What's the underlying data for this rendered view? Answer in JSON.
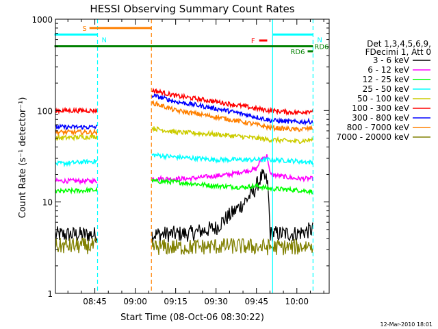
{
  "chart_data": {
    "type": "line",
    "title": "HESSI Observing Summary Count Rates",
    "xlabel": "Start Time (08-Oct-06 08:30:22)",
    "ylabel": "Count Rate (s⁻¹ detector⁻¹)",
    "yscale": "log",
    "ylim": [
      1,
      1000
    ],
    "xlim": [
      "08:30:22",
      "10:12:00"
    ],
    "x_ticks": [
      "08:45",
      "09:00",
      "09:15",
      "09:30",
      "09:45",
      "10:00"
    ],
    "y_ticks": [
      "1",
      "10",
      "100",
      "1000"
    ],
    "footer_date": "12-Mar-2010 18:01",
    "legend_header": [
      "Det 1,3,4,5,6,9,",
      "FDecimi 1, Att 0"
    ],
    "legend_position": "right",
    "series": [
      {
        "name": "3 - 6 keV",
        "color": "#000000",
        "x": [
          "08:30",
          "08:46",
          "09:05",
          "09:20",
          "09:30",
          "09:36",
          "09:40",
          "09:44",
          "09:47",
          "09:49",
          "09:50",
          "10:00",
          "10:06"
        ],
        "y": [
          4.4,
          4.4,
          4.4,
          4.5,
          5.2,
          7.5,
          9.5,
          13,
          19,
          17,
          4.5,
          4.5,
          5
        ]
      },
      {
        "name": "6 - 12 keV",
        "color": "#ff00ff",
        "x": [
          "08:30",
          "08:46",
          "09:05",
          "09:20",
          "09:35",
          "09:45",
          "09:47",
          "09:49",
          "09:50",
          "10:00",
          "10:06"
        ],
        "y": [
          17,
          17,
          18,
          18,
          20,
          23,
          30,
          32,
          20,
          18,
          18
        ]
      },
      {
        "name": "12 - 25 keV",
        "color": "#00ff00",
        "x": [
          "08:30",
          "08:46",
          "09:05",
          "09:15",
          "09:30",
          "09:40",
          "09:45",
          "09:50",
          "10:00",
          "10:06"
        ],
        "y": [
          13,
          13.5,
          17,
          16.5,
          15,
          14.5,
          15,
          14,
          13.5,
          13
        ]
      },
      {
        "name": "25 - 50 keV",
        "color": "#00ffff",
        "x": [
          "08:30",
          "08:46",
          "09:05",
          "09:15",
          "09:30",
          "09:45",
          "09:50",
          "10:00",
          "10:06"
        ],
        "y": [
          26,
          28,
          33,
          31,
          29,
          29,
          29,
          28,
          27
        ]
      },
      {
        "name": "50 - 100 keV",
        "color": "#cccc00",
        "x": [
          "08:30",
          "08:46",
          "09:05",
          "09:15",
          "09:30",
          "09:45",
          "09:50",
          "10:00",
          "10:06"
        ],
        "y": [
          50,
          52,
          65,
          58,
          55,
          50,
          48,
          46,
          48
        ]
      },
      {
        "name": "100 - 300 keV",
        "color": "#ff0000",
        "x": [
          "08:30",
          "08:46",
          "09:05",
          "09:15",
          "09:30",
          "09:45",
          "09:50",
          "10:00",
          "10:06"
        ],
        "y": [
          100,
          100,
          170,
          145,
          125,
          105,
          100,
          95,
          100
        ]
      },
      {
        "name": "300 - 800 keV",
        "color": "#0000ff",
        "x": [
          "08:30",
          "08:46",
          "09:05",
          "09:15",
          "09:30",
          "09:45",
          "09:50",
          "10:00",
          "10:06"
        ],
        "y": [
          66,
          66,
          150,
          125,
          105,
          85,
          78,
          75,
          76
        ]
      },
      {
        "name": "800 - 7000 keV",
        "color": "#ff8000",
        "x": [
          "08:30",
          "08:46",
          "09:05",
          "09:15",
          "09:30",
          "09:45",
          "09:50",
          "10:00",
          "10:06"
        ],
        "y": [
          58,
          58,
          125,
          100,
          85,
          70,
          65,
          62,
          64
        ]
      },
      {
        "name": "7000 - 20000 keV",
        "color": "#808000",
        "x": [
          "08:30",
          "08:46",
          "09:05",
          "09:20",
          "09:35",
          "09:50",
          "10:00",
          "10:06"
        ],
        "y": [
          3.3,
          3.3,
          3.2,
          3.2,
          3.3,
          3.2,
          3.2,
          3.4
        ]
      }
    ],
    "annotations": [
      {
        "label": "S",
        "color": "#ff8000",
        "x_start": "08:43",
        "x_end": "09:06",
        "y": 800
      },
      {
        "label": "N",
        "color": "#00ffff",
        "x_start": "08:30",
        "x_end": "08:46",
        "y": 680
      },
      {
        "label": "N",
        "color": "#00ffff",
        "x_start": "09:51",
        "x_end": "10:06",
        "y": 680
      },
      {
        "label": "F",
        "color": "#ff0000",
        "x_start": "09:46",
        "x_end": "09:49",
        "y": 585
      },
      {
        "label": "RD6",
        "color": "#008000",
        "x_start": "08:30",
        "x_end": "10:06",
        "y": 505
      },
      {
        "label": "RD6",
        "color": "#008000",
        "x_start": "10:04",
        "x_end": "10:06",
        "y": 445
      }
    ],
    "vlines": [
      {
        "x": "08:46",
        "color": "#00ffff",
        "style": "dashed"
      },
      {
        "x": "09:06",
        "color": "#ff8000",
        "style": "dashed"
      },
      {
        "x": "09:51",
        "color": "#00ffff",
        "style": "solid"
      },
      {
        "x": "10:06",
        "color": "#00ffff",
        "style": "dashed"
      }
    ],
    "gaps": [
      {
        "from": "08:46",
        "to": "09:06"
      }
    ],
    "grid": false
  }
}
